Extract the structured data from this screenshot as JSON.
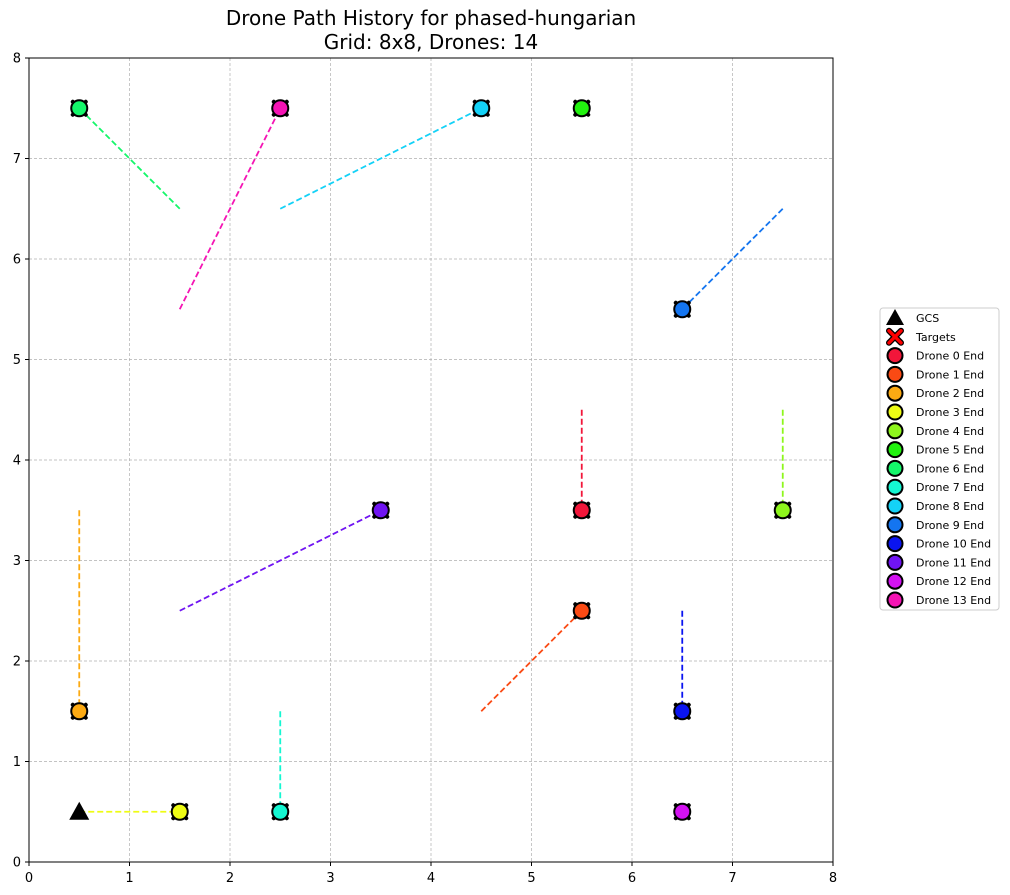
{
  "chart_data": {
    "type": "scatter",
    "title": "Drone Path History for phased-hungarian",
    "subtitle": "Grid: 8x8, Drones: 14",
    "xlim": [
      0,
      8
    ],
    "ylim": [
      0,
      8
    ],
    "xticks": [
      "0",
      "1",
      "2",
      "3",
      "4",
      "5",
      "6",
      "7",
      "8"
    ],
    "yticks": [
      "0",
      "1",
      "2",
      "3",
      "4",
      "5",
      "6",
      "7",
      "8"
    ],
    "grid": true,
    "legend_position": "right",
    "gcs": {
      "label": "GCS",
      "x": 0.5,
      "y": 0.5,
      "color": "#000000"
    },
    "targets": {
      "label": "Targets",
      "color": "#ff0000"
    },
    "drones": [
      {
        "name": "Drone 0 End",
        "color": "#f2163a",
        "path": [
          [
            5.5,
            4.5
          ],
          [
            5.5,
            3.5
          ]
        ]
      },
      {
        "name": "Drone 1 End",
        "color": "#fa4a14",
        "path": [
          [
            4.5,
            1.5
          ],
          [
            5.5,
            2.5
          ]
        ]
      },
      {
        "name": "Drone 2 End",
        "color": "#fcaa13",
        "path": [
          [
            0.5,
            3.5
          ],
          [
            0.5,
            1.5
          ]
        ]
      },
      {
        "name": "Drone 3 End",
        "color": "#eefc14",
        "path": [
          [
            0.5,
            0.5
          ],
          [
            1.5,
            0.5
          ]
        ]
      },
      {
        "name": "Drone 4 End",
        "color": "#8ef61c",
        "path": [
          [
            7.5,
            4.5
          ],
          [
            7.5,
            3.5
          ]
        ]
      },
      {
        "name": "Drone 5 End",
        "color": "#22f20f",
        "path": [
          [
            5.5,
            7.5
          ]
        ]
      },
      {
        "name": "Drone 6 End",
        "color": "#14f76a",
        "path": [
          [
            1.5,
            6.5
          ],
          [
            0.5,
            7.5
          ]
        ]
      },
      {
        "name": "Drone 7 End",
        "color": "#14f7d2",
        "path": [
          [
            2.5,
            1.5
          ],
          [
            2.5,
            0.5
          ]
        ]
      },
      {
        "name": "Drone 8 End",
        "color": "#14d2f7",
        "path": [
          [
            2.5,
            6.5
          ],
          [
            4.5,
            7.5
          ]
        ]
      },
      {
        "name": "Drone 9 End",
        "color": "#1475f0",
        "path": [
          [
            7.5,
            6.5
          ],
          [
            6.5,
            5.5
          ]
        ]
      },
      {
        "name": "Drone 10 End",
        "color": "#0a14f0",
        "path": [
          [
            6.5,
            2.5
          ],
          [
            6.5,
            1.5
          ]
        ]
      },
      {
        "name": "Drone 11 End",
        "color": "#7014f2",
        "path": [
          [
            1.5,
            2.5
          ],
          [
            3.5,
            3.5
          ]
        ]
      },
      {
        "name": "Drone 12 End",
        "color": "#d412f2",
        "path": [
          [
            6.5,
            0.5
          ]
        ]
      },
      {
        "name": "Drone 13 End",
        "color": "#f514b4",
        "path": [
          [
            1.5,
            5.5
          ],
          [
            2.5,
            7.5
          ]
        ]
      }
    ]
  }
}
